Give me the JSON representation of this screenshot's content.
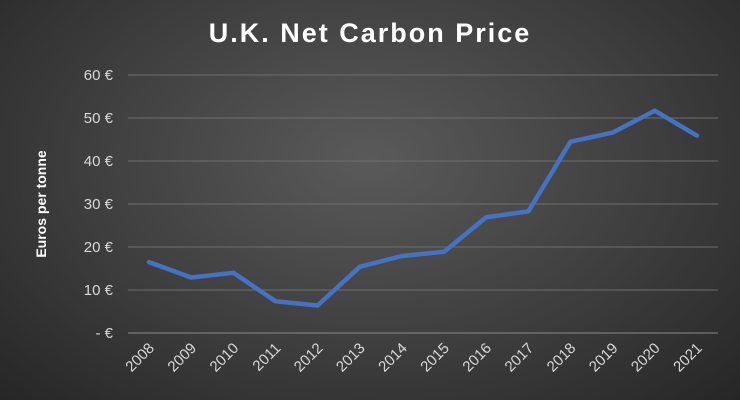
{
  "chart_data": {
    "type": "line",
    "title": "U.K. Net Carbon Price",
    "ylabel": "Euros per tonne",
    "xlabel": "",
    "x": [
      "2008",
      "2009",
      "2010",
      "2011",
      "2012",
      "2013",
      "2014",
      "2015",
      "2016",
      "2017",
      "2018",
      "2019",
      "2020",
      "2021"
    ],
    "series": [
      {
        "values": [
          16.5,
          12.9,
          14.0,
          7.4,
          6.4,
          15.4,
          17.9,
          18.9,
          26.9,
          28.3,
          44.5,
          46.6,
          51.7,
          45.9
        ]
      }
    ],
    "ylim": [
      0,
      60
    ],
    "yticks": [
      0,
      10,
      20,
      30,
      40,
      50,
      60
    ],
    "ytick_labels": [
      "- €",
      "10 €",
      "20 €",
      "30 €",
      "40 €",
      "50 €",
      "60 €"
    ],
    "grid": true,
    "legend": "none",
    "colors": {
      "line": "#4472C4"
    }
  }
}
